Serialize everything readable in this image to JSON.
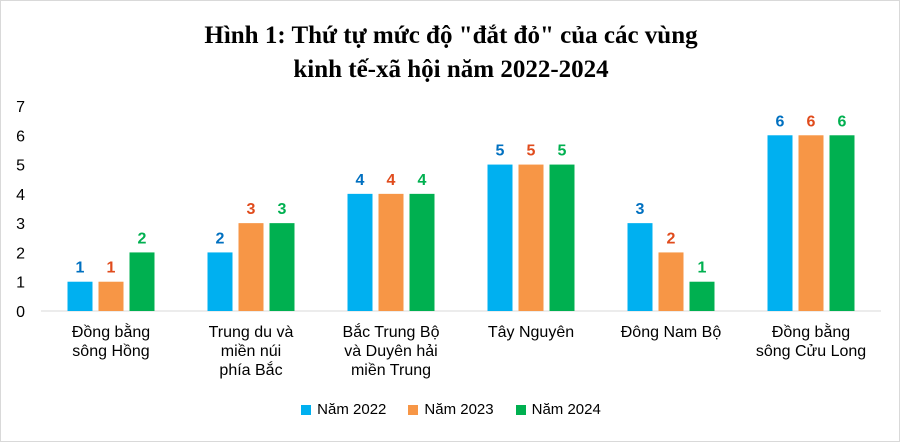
{
  "chart_data": {
    "type": "bar",
    "title": [
      "Hình 1: Thứ tự mức độ \"đắt đỏ\" của các vùng",
      "kinh tế-xã hội năm 2022-2024"
    ],
    "categories": [
      [
        "Đồng bằng",
        "sông Hồng"
      ],
      [
        "Trung du và",
        "miền núi",
        "phía Bắc"
      ],
      [
        "Bắc Trung Bộ",
        "và Duyên hải",
        "miền Trung"
      ],
      [
        "Tây Nguyên"
      ],
      [
        "Đông Nam Bộ"
      ],
      [
        "Đồng bằng",
        "sông Cửu Long"
      ]
    ],
    "series": [
      {
        "name": "Năm 2022",
        "color": "#00b0f0",
        "label_color": "#0070c0",
        "values": [
          1,
          2,
          4,
          5,
          3,
          6
        ]
      },
      {
        "name": "Năm 2023",
        "color": "#f79646",
        "label_color": "#e04b1c",
        "values": [
          1,
          3,
          4,
          5,
          2,
          6
        ]
      },
      {
        "name": "Năm 2024",
        "color": "#00b050",
        "label_color": "#00b050",
        "values": [
          2,
          3,
          4,
          5,
          1,
          6
        ]
      }
    ],
    "yticks": [
      "0",
      "1",
      "2",
      "3",
      "4",
      "5",
      "6",
      "7"
    ],
    "ylim": [
      0,
      7
    ],
    "grid": false,
    "legend_position": "bottom"
  }
}
